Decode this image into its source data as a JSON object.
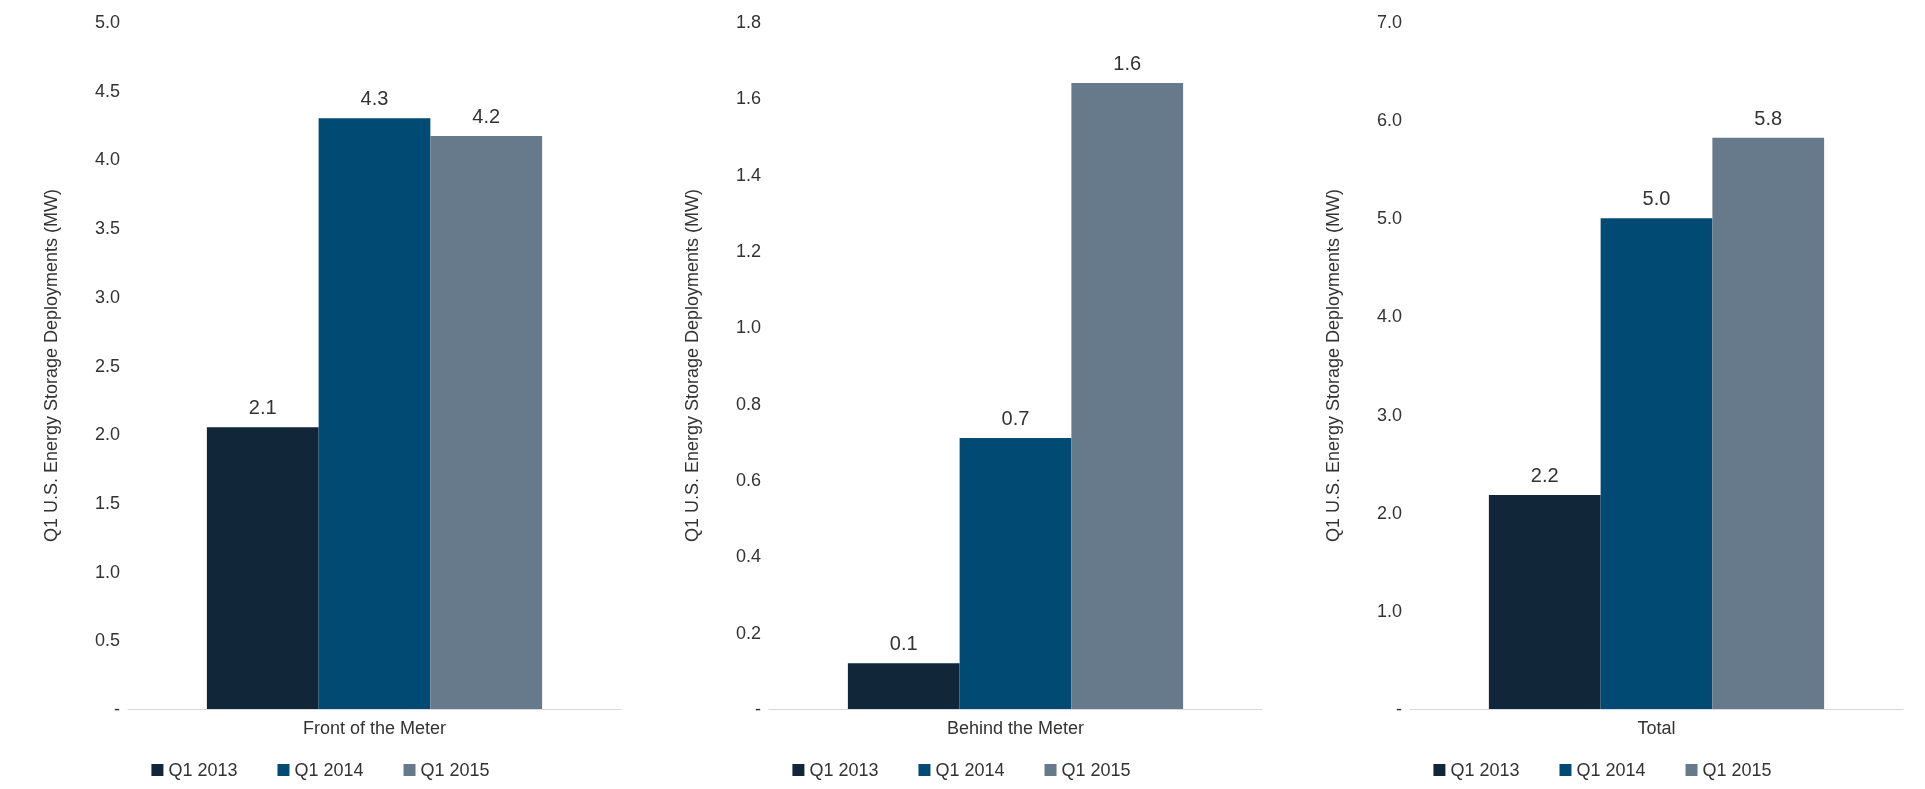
{
  "chart_data": [
    {
      "type": "bar",
      "categories": [
        "Front of the Meter"
      ],
      "ylabel": "Q1 U.S. Energy Storage Deployments (MW)",
      "series": [
        {
          "name": "Q1 2013",
          "color": "#12263a",
          "values": [
            2.05
          ],
          "value_labels": [
            "2.1"
          ]
        },
        {
          "name": "Q1 2014",
          "color": "#014a74",
          "values": [
            4.3
          ],
          "value_labels": [
            "4.3"
          ]
        },
        {
          "name": "Q1 2015",
          "color": "#667a8c",
          "values": [
            4.17
          ],
          "value_labels": [
            "4.2"
          ]
        }
      ],
      "ylim": [
        0,
        5
      ],
      "yticks": [
        {
          "value": 0,
          "label": "-"
        },
        0.5,
        {
          "value": 1,
          "label": "1.0"
        },
        1.5,
        {
          "value": 2,
          "label": "2.0"
        },
        2.5,
        {
          "value": 3,
          "label": "3.0"
        },
        3.5,
        {
          "value": 4,
          "label": "4.0"
        },
        4.5,
        {
          "value": 5,
          "label": "5.0"
        }
      ],
      "grid": false,
      "legend": "bottom"
    },
    {
      "type": "bar",
      "categories": [
        "Behind the Meter"
      ],
      "ylabel": "Q1 U.S. Energy Storage Deployments (MW)",
      "series": [
        {
          "name": "Q1 2013",
          "color": "#12263a",
          "values": [
            0.12
          ],
          "value_labels": [
            "0.1"
          ]
        },
        {
          "name": "Q1 2014",
          "color": "#014a74",
          "values": [
            0.71
          ],
          "value_labels": [
            "0.7"
          ]
        },
        {
          "name": "Q1 2015",
          "color": "#667a8c",
          "values": [
            1.64
          ],
          "value_labels": [
            "1.6"
          ]
        }
      ],
      "ylim": [
        0,
        1.8
      ],
      "yticks": [
        {
          "value": 0,
          "label": "-"
        },
        0.2,
        0.4,
        0.6,
        0.8,
        {
          "value": 1,
          "label": "1.0"
        },
        1.2,
        1.4,
        1.6,
        1.8
      ],
      "grid": false,
      "legend": "bottom"
    },
    {
      "type": "bar",
      "categories": [
        "Total"
      ],
      "ylabel": "Q1 U.S. Energy Storage Deployments (MW)",
      "series": [
        {
          "name": "Q1 2013",
          "color": "#12263a",
          "values": [
            2.18
          ],
          "value_labels": [
            "2.2"
          ]
        },
        {
          "name": "Q1 2014",
          "color": "#014a74",
          "values": [
            5.0
          ],
          "value_labels": [
            "5.0"
          ]
        },
        {
          "name": "Q1 2015",
          "color": "#667a8c",
          "values": [
            5.82
          ],
          "value_labels": [
            "5.8"
          ]
        }
      ],
      "ylim": [
        0,
        7
      ],
      "yticks": [
        {
          "value": 0,
          "label": "-"
        },
        {
          "value": 1,
          "label": "1.0"
        },
        {
          "value": 2,
          "label": "2.0"
        },
        {
          "value": 3,
          "label": "3.0"
        },
        {
          "value": 4,
          "label": "4.0"
        },
        {
          "value": 5,
          "label": "5.0"
        },
        {
          "value": 6,
          "label": "6.0"
        },
        {
          "value": 7,
          "label": "7.0"
        }
      ],
      "grid": false,
      "legend": "bottom"
    }
  ]
}
